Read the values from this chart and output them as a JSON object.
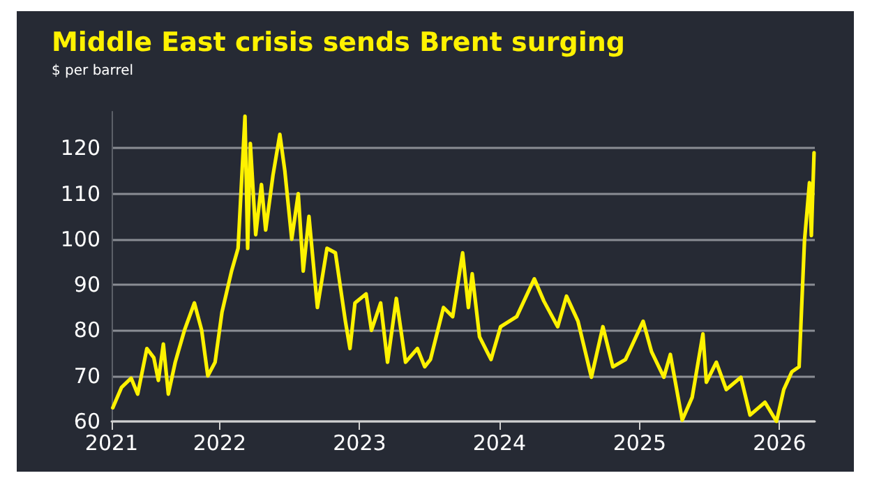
{
  "chart_data": {
    "type": "line",
    "title": "Middle East crisis sends Brent surging",
    "subtitle": "$ per barrel",
    "x": [
      "2021-03-28",
      "2021-04-20",
      "2021-05-15",
      "2021-06-01",
      "2021-06-25",
      "2021-07-13",
      "2021-07-25",
      "2021-08-07",
      "2021-08-20",
      "2021-09-07",
      "2021-10-01",
      "2021-10-27",
      "2021-11-15",
      "2021-12-01",
      "2021-12-20",
      "2022-01-07",
      "2022-02-01",
      "2022-02-18",
      "2022-03-08",
      "2022-03-15",
      "2022-03-22",
      "2022-04-05",
      "2022-04-20",
      "2022-05-01",
      "2022-05-20",
      "2022-06-07",
      "2022-06-20",
      "2022-07-08",
      "2022-07-25",
      "2022-08-07",
      "2022-08-22",
      "2022-09-13",
      "2022-10-08",
      "2022-10-30",
      "2022-11-25",
      "2022-12-07",
      "2022-12-20",
      "2023-01-18",
      "2023-02-01",
      "2023-02-25",
      "2023-03-15",
      "2023-04-07",
      "2023-05-01",
      "2023-06-01",
      "2023-06-20",
      "2023-07-05",
      "2023-08-08",
      "2023-09-01",
      "2023-09-27",
      "2023-10-12",
      "2023-10-22",
      "2023-11-10",
      "2023-12-10",
      "2024-01-04",
      "2024-02-15",
      "2024-04-01",
      "2024-04-26",
      "2024-06-01",
      "2024-06-24",
      "2024-07-24",
      "2024-08-28",
      "2024-09-27",
      "2024-10-23",
      "2024-11-25",
      "2025-01-10",
      "2025-02-01",
      "2025-03-05",
      "2025-03-22",
      "2025-04-22",
      "2025-05-18",
      "2025-06-15",
      "2025-06-24",
      "2025-07-20",
      "2025-08-15",
      "2025-09-22",
      "2025-10-16",
      "2025-11-24",
      "2025-12-24",
      "2026-01-12",
      "2026-02-02",
      "2026-02-21",
      "2026-03-07",
      "2026-03-20",
      "2026-03-25",
      "2026-04-01"
    ],
    "series": [
      {
        "color": "#fff200",
        "values": [
          63,
          67.5,
          69.5,
          66,
          76,
          74,
          69,
          77,
          66,
          73,
          80,
          86,
          80,
          70,
          73,
          84,
          93,
          98,
          127,
          98,
          121,
          101,
          112,
          102,
          114,
          123,
          115,
          100,
          110,
          93,
          105,
          85,
          98,
          97,
          82,
          76,
          86,
          88,
          80,
          86,
          73,
          87,
          73,
          76,
          72,
          73.6,
          85,
          83,
          97,
          85,
          92.4,
          78.6,
          73.6,
          80.8,
          83,
          91.3,
          86.4,
          80.8,
          87.5,
          82,
          69.7,
          80.8,
          72,
          73.6,
          82,
          75.3,
          69.7,
          74.7,
          60.3,
          65.3,
          79.2,
          68.6,
          73,
          67,
          69.7,
          61.4,
          64.2,
          60,
          67,
          70.9,
          72,
          99.6,
          112.4,
          100.8,
          119
        ]
      }
    ],
    "xlim": [
      "2021-03-25",
      "2026-04-03"
    ],
    "xticks": [
      {
        "value": "2021-03-25",
        "label": "2021"
      },
      "2022",
      "2023",
      "2024",
      "2025",
      "2026"
    ],
    "ylim": [
      60,
      128
    ],
    "yticks": [
      60,
      70,
      80,
      90,
      100,
      110,
      120
    ],
    "grid": "y",
    "marker": "none",
    "line_style": "solid"
  }
}
